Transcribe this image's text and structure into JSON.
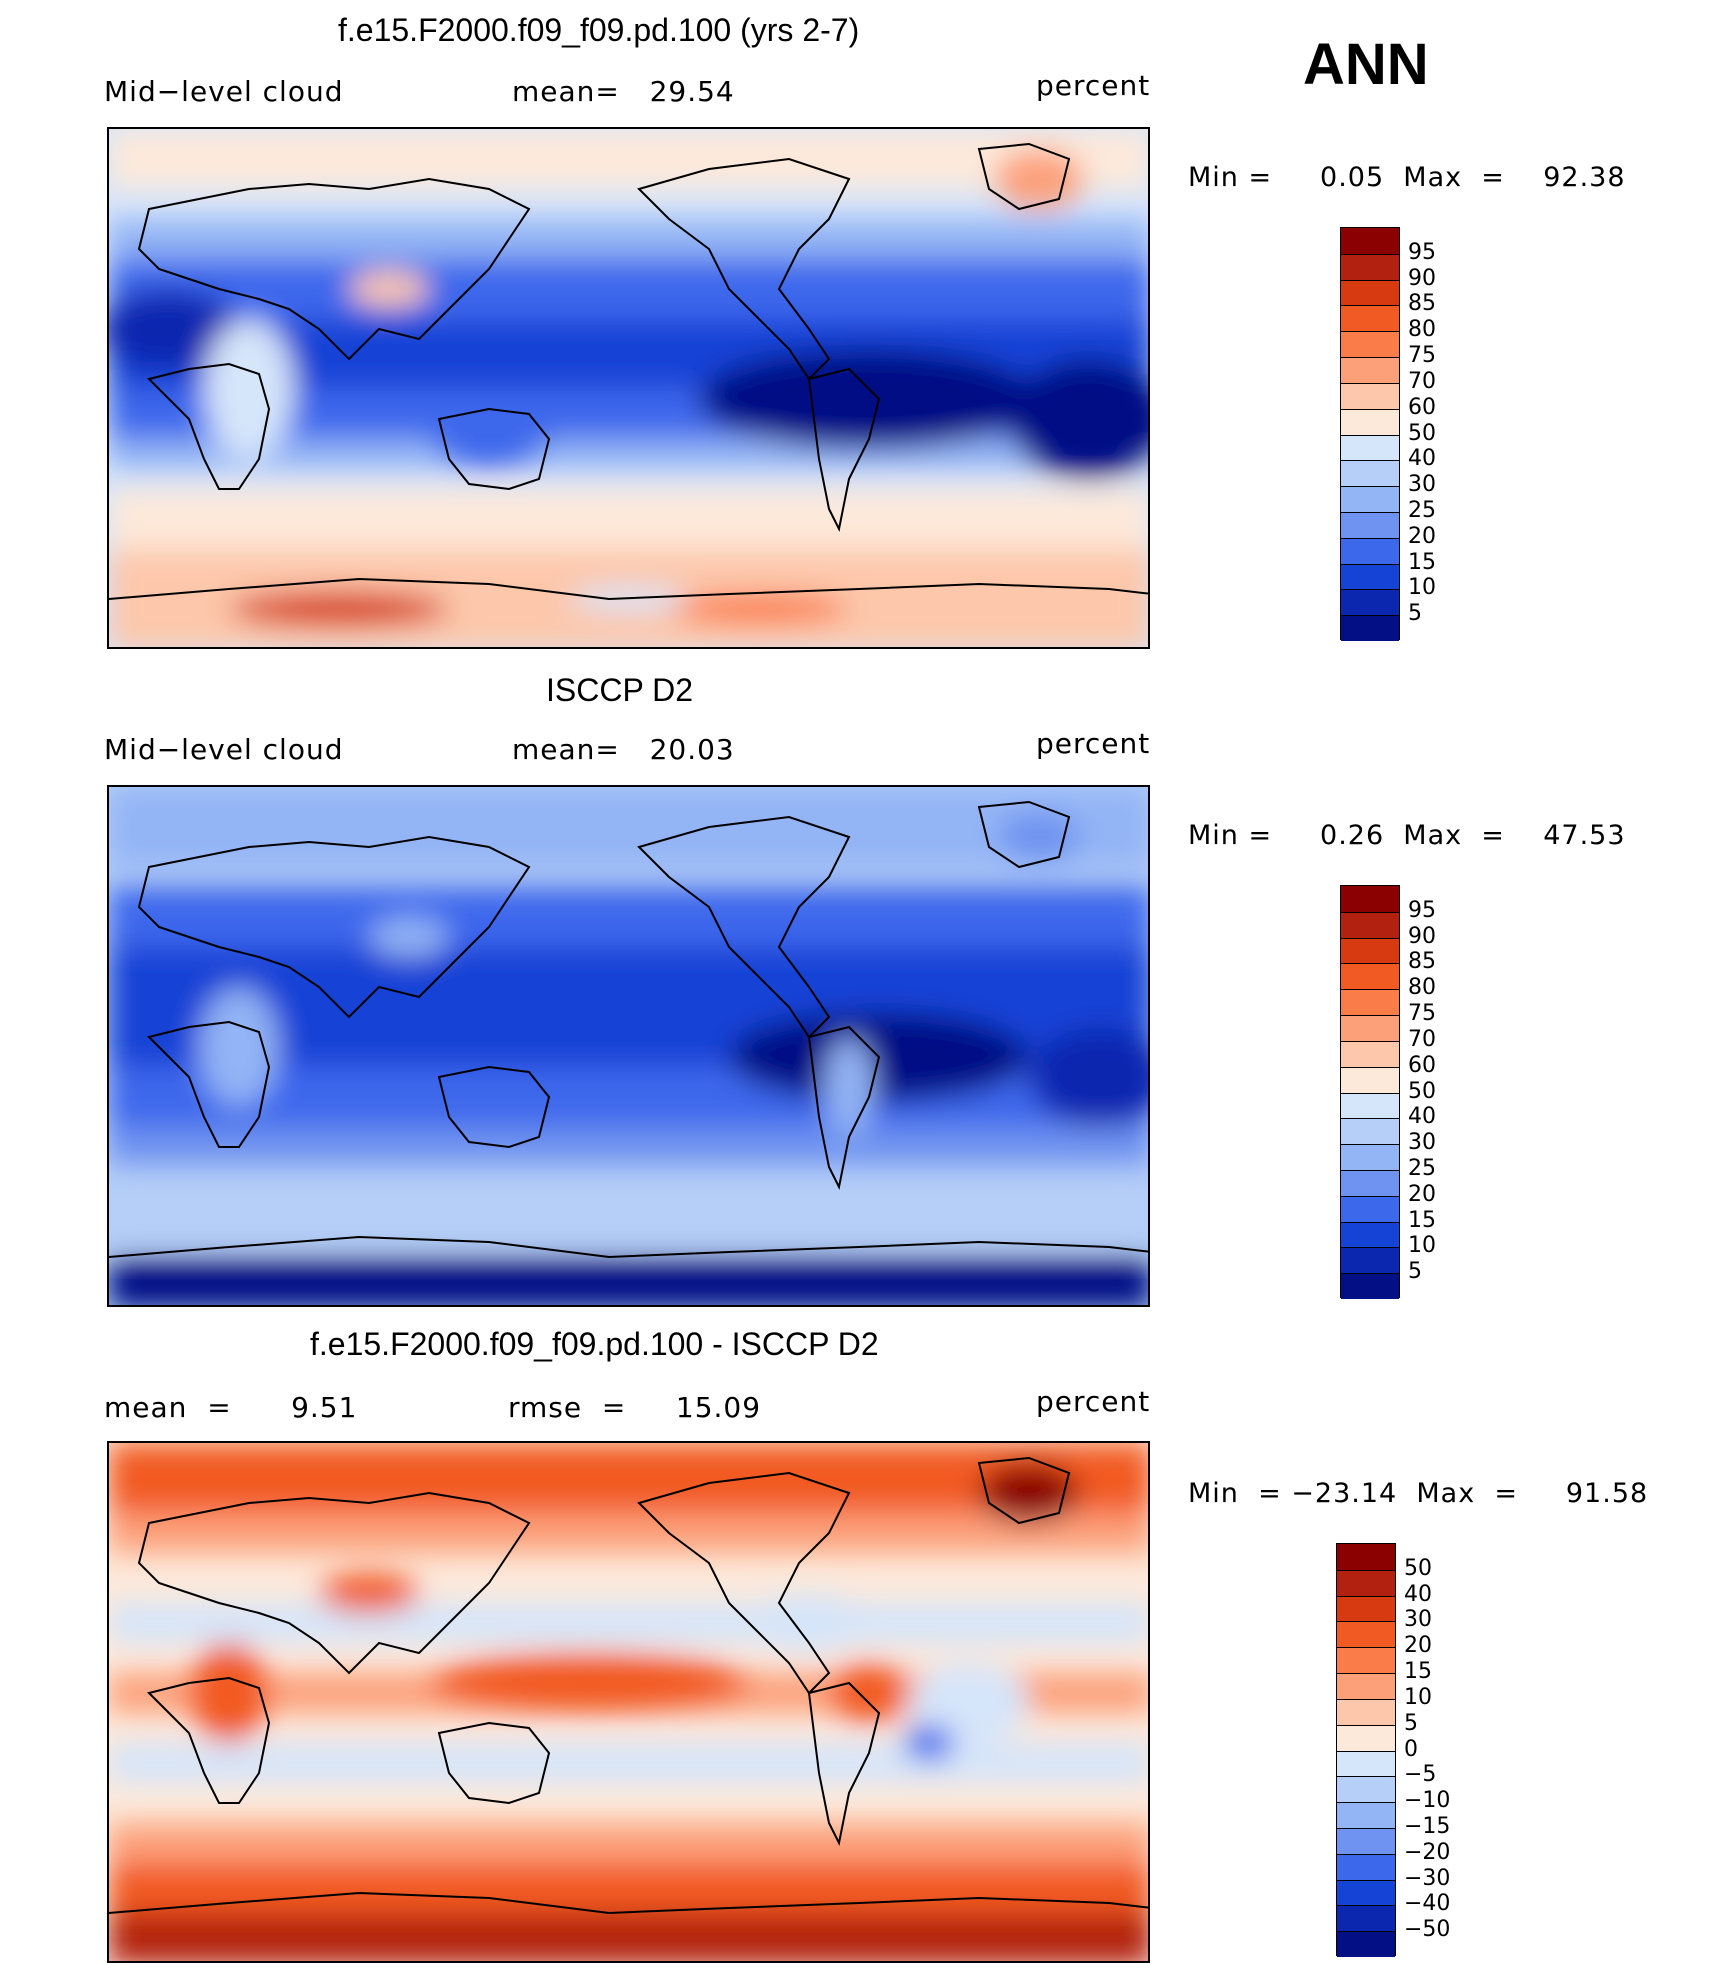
{
  "overall_label": "ANN",
  "panels": [
    {
      "title": "f.e15.F2000.f09_f09.pd.100 (yrs 2-7)",
      "left_label": "Mid−level cloud",
      "center_label": "mean=   29.54",
      "units": "percent",
      "minmax": "Min =     0.05  Max  =    92.38",
      "colorbar": {
        "colors": [
          "#8b0000",
          "#b22110",
          "#d73a10",
          "#f25a24",
          "#fa7c48",
          "#fca07a",
          "#fdc7ab",
          "#fde9da",
          "#d5e5fa",
          "#b5cff8",
          "#93b4f5",
          "#6e93f0",
          "#3c68ec",
          "#1443d6",
          "#0b27b0",
          "#020f85"
        ],
        "labels": [
          "95",
          "90",
          "85",
          "80",
          "75",
          "70",
          "60",
          "50",
          "40",
          "30",
          "25",
          "20",
          "15",
          "10",
          "5"
        ]
      }
    },
    {
      "title": "ISCCP D2",
      "left_label": "Mid−level cloud",
      "center_label": "mean=   20.03",
      "units": "percent",
      "minmax": "Min =     0.26  Max  =    47.53",
      "colorbar": {
        "colors": [
          "#8b0000",
          "#b22110",
          "#d73a10",
          "#f25a24",
          "#fa7c48",
          "#fca07a",
          "#fdc7ab",
          "#fde9da",
          "#d5e5fa",
          "#b5cff8",
          "#93b4f5",
          "#6e93f0",
          "#3c68ec",
          "#1443d6",
          "#0b27b0",
          "#020f85"
        ],
        "labels": [
          "95",
          "90",
          "85",
          "80",
          "75",
          "70",
          "60",
          "50",
          "40",
          "30",
          "25",
          "20",
          "15",
          "10",
          "5"
        ]
      }
    },
    {
      "title": "f.e15.F2000.f09_f09.pd.100 - ISCCP D2",
      "left_label": "mean  =      9.51",
      "center_label": "rmse  =     15.09",
      "units": "percent",
      "minmax": "Min  = −23.14  Max  =     91.58",
      "colorbar": {
        "colors": [
          "#8b0000",
          "#b22110",
          "#d73a10",
          "#f25a24",
          "#fa7c48",
          "#fca07a",
          "#fdc7ab",
          "#fde9da",
          "#d5e5fa",
          "#b5cff8",
          "#93b4f5",
          "#6e93f0",
          "#3c68ec",
          "#1443d6",
          "#0b27b0",
          "#020f85"
        ],
        "labels": [
          "50",
          "40",
          "30",
          "20",
          "15",
          "10",
          "5",
          "0",
          "−5",
          "−10",
          "−15",
          "−20",
          "−30",
          "−40",
          "−50"
        ]
      }
    }
  ]
}
